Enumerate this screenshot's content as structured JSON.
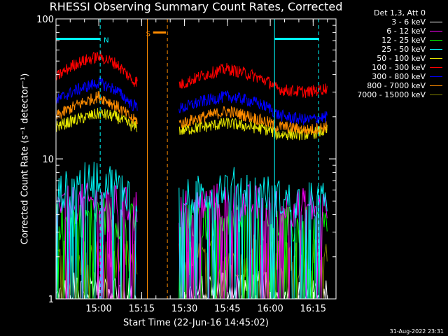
{
  "chart_data": {
    "type": "line",
    "title": "RHESSI Observing Summary Count Rates, Corrected",
    "xlabel": "Start Time (22-Jun-16 14:45:02)",
    "ylabel": "Corrected Count Rate (s⁻¹ detector⁻¹)",
    "yscale": "log",
    "ylim": [
      1,
      100
    ],
    "xlim": [
      "14:45:02",
      "16:23:00"
    ],
    "x_ticks": [
      "15:00",
      "15:15",
      "15:30",
      "15:45",
      "16:00",
      "16:15"
    ],
    "y_ticks": [
      "1",
      "10",
      "100"
    ],
    "legend_header": "Det 1,3, Att 0",
    "legend_position": "top-right",
    "gaps": [
      [
        "15:13:30",
        "15:28:00"
      ]
    ],
    "series": [
      {
        "name": "3 - 6 keV",
        "color": "#ffffff",
        "x": [
          "14:45",
          "15:00",
          "15:12",
          "15:29",
          "15:45",
          "16:00",
          "16:05",
          "16:20"
        ],
        "y": [
          1.0,
          1.3,
          1.0,
          1.0,
          1.3,
          1.1,
          1.0,
          1.0
        ]
      },
      {
        "name": "6 - 12 keV",
        "color": "#ff00ff",
        "x": [
          "14:45",
          "15:00",
          "15:12",
          "15:29",
          "15:45",
          "16:00",
          "16:05",
          "16:20"
        ],
        "y": [
          4.5,
          5.0,
          4.5,
          4.5,
          5.0,
          4.6,
          4.5,
          4.5
        ]
      },
      {
        "name": "12 - 25 keV",
        "color": "#00ff00",
        "x": [
          "14:45",
          "15:00",
          "15:12",
          "15:29",
          "15:45",
          "16:00",
          "16:05",
          "16:20"
        ],
        "y": [
          3.5,
          4.0,
          3.5,
          3.4,
          3.8,
          3.5,
          3.3,
          3.3
        ]
      },
      {
        "name": "25 - 50 keV",
        "color": "#00ffff",
        "x": [
          "14:45",
          "15:00",
          "15:12",
          "15:29",
          "15:45",
          "16:00",
          "16:05",
          "16:20"
        ],
        "y": [
          5.5,
          7.5,
          5.5,
          5.0,
          6.5,
          5.5,
          5.0,
          5.0
        ]
      },
      {
        "name": "50 - 100 keV",
        "color": "#e6e600",
        "x": [
          "14:45",
          "14:52",
          "15:00",
          "15:06",
          "15:12",
          "15:29",
          "15:37",
          "15:45",
          "15:53",
          "16:00",
          "16:02",
          "16:05",
          "16:13",
          "16:20"
        ],
        "y": [
          17,
          19,
          21,
          20,
          17,
          16,
          17,
          18,
          17,
          16,
          15,
          15,
          15,
          16
        ]
      },
      {
        "name": "100 - 300 keV",
        "color": "#ff0000",
        "x": [
          "14:45",
          "14:52",
          "15:00",
          "15:06",
          "15:12",
          "15:29",
          "15:37",
          "15:45",
          "15:53",
          "16:00",
          "16:02",
          "16:05",
          "16:13",
          "16:20"
        ],
        "y": [
          38,
          48,
          54,
          48,
          36,
          34,
          40,
          44,
          40,
          35,
          32,
          31,
          30,
          32
        ]
      },
      {
        "name": "300 - 800 keV",
        "color": "#0000ff",
        "x": [
          "14:45",
          "14:52",
          "15:00",
          "15:06",
          "15:12",
          "15:29",
          "15:37",
          "15:45",
          "15:53",
          "16:00",
          "16:02",
          "16:05",
          "16:13",
          "16:20"
        ],
        "y": [
          26,
          31,
          35,
          31,
          24,
          23,
          26,
          28,
          26,
          23,
          21,
          20,
          19,
          20
        ]
      },
      {
        "name": "800 - 7000 keV",
        "color": "#ff8c00",
        "x": [
          "14:45",
          "14:52",
          "15:00",
          "15:06",
          "15:12",
          "15:29",
          "15:37",
          "15:45",
          "15:53",
          "16:00",
          "16:02",
          "16:05",
          "16:13",
          "16:20"
        ],
        "y": [
          20,
          24,
          28,
          24,
          19,
          18,
          20,
          22,
          20,
          18,
          17,
          17,
          16,
          17
        ]
      },
      {
        "name": "7000 - 15000 keV",
        "color": "#808000",
        "x": [
          "14:45",
          "15:00",
          "15:12",
          "15:29",
          "15:45",
          "16:00",
          "16:05",
          "16:20"
        ],
        "y": [
          1.9,
          2.0,
          1.9,
          1.9,
          2.0,
          1.9,
          1.9,
          1.9
        ]
      }
    ],
    "annotations": [
      {
        "type": "bar",
        "label": "N",
        "color": "#00ffff",
        "y": 72,
        "x_start": "14:45:02",
        "x_end": "15:00:30"
      },
      {
        "type": "bar",
        "label": "",
        "color": "#00ffff",
        "y": 72,
        "x_start": "16:01:30",
        "x_end": "16:17:00"
      },
      {
        "type": "bar",
        "label": "S",
        "color": "#ff8c00",
        "y": 80,
        "x_start": "15:19:00",
        "x_end": "15:23:30"
      },
      {
        "type": "vline",
        "color": "#00ffff",
        "style": "dashed",
        "x": "15:00:30"
      },
      {
        "type": "vline",
        "color": "#00ffff",
        "style": "solid",
        "x": "16:01:30"
      },
      {
        "type": "vline",
        "color": "#00ffff",
        "style": "dashed",
        "x": "16:17:00"
      },
      {
        "type": "vline",
        "color": "#ff8c00",
        "style": "solid",
        "x": "15:17:00"
      },
      {
        "type": "vline",
        "color": "#ff8c00",
        "style": "dashed",
        "x": "15:24:00"
      }
    ]
  },
  "footer_timestamp": "31-Aug-2022 23:31"
}
